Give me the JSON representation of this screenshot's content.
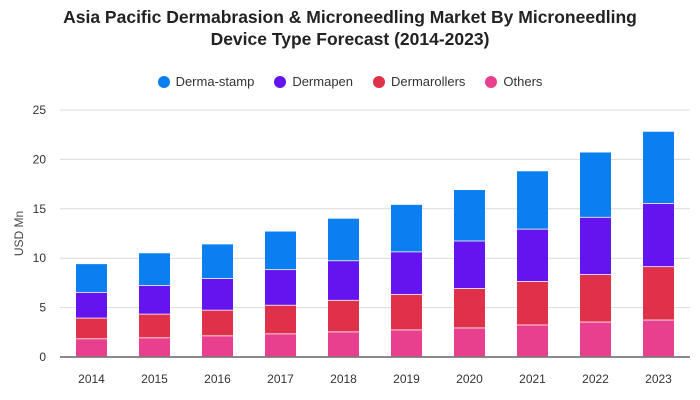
{
  "chart_data": {
    "type": "bar",
    "stacked": true,
    "title_line1": "Asia Pacific Dermabrasion & Microneedling Market By Microneedling",
    "title_line2": "Device Type Forecast (2014-2023)",
    "ylabel": "USD Mn",
    "xlabel": "",
    "ylim": [
      0,
      25
    ],
    "yticks": [
      0,
      5,
      10,
      15,
      20,
      25
    ],
    "grid": true,
    "legend_position": "top",
    "categories": [
      "2014",
      "2015",
      "2016",
      "2017",
      "2018",
      "2019",
      "2020",
      "2021",
      "2022",
      "2023"
    ],
    "series": [
      {
        "name": "Others",
        "color": "#e8408e",
        "values": [
          1.8,
          1.9,
          2.1,
          2.3,
          2.5,
          2.7,
          2.9,
          3.2,
          3.5,
          3.7
        ]
      },
      {
        "name": "Dermarollers",
        "color": "#e0314a",
        "values": [
          2.1,
          2.4,
          2.6,
          2.9,
          3.2,
          3.6,
          4.0,
          4.4,
          4.8,
          5.4
        ]
      },
      {
        "name": "Dermapen",
        "color": "#6414ee",
        "values": [
          2.6,
          2.9,
          3.2,
          3.6,
          4.0,
          4.3,
          4.8,
          5.3,
          5.8,
          6.4
        ]
      },
      {
        "name": "Derma-stamp",
        "color": "#0a7ff0",
        "values": [
          2.9,
          3.3,
          3.5,
          3.9,
          4.3,
          4.8,
          5.2,
          5.9,
          6.6,
          7.3
        ]
      }
    ],
    "legend_order": [
      "Derma-stamp",
      "Dermapen",
      "Dermarollers",
      "Others"
    ]
  }
}
